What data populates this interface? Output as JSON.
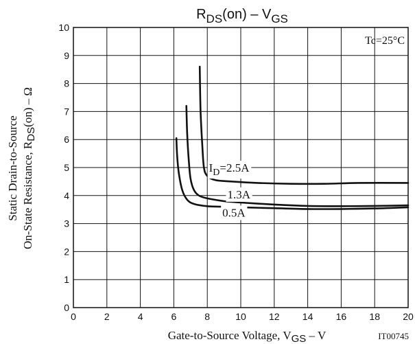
{
  "chart_data": {
    "type": "line",
    "title": {
      "main": "R",
      "sub1": "DS",
      "mid": "(on)  –  V",
      "sub2": "GS"
    },
    "xlabel": {
      "main": "Gate-to-Source Voltage, V",
      "sub": "GS",
      "tail": "  –  V"
    },
    "ylabel": {
      "line1": "Static Drain-to-Source",
      "line2_main": "On-State Resistance, R",
      "line2_sub": "DS",
      "line2_tail": "(on)  –  Ω"
    },
    "condition": "Tc=25°C",
    "code": "IT00745",
    "xlim": [
      0,
      20
    ],
    "ylim": [
      0,
      10
    ],
    "xticks": [
      "0",
      "2",
      "4",
      "6",
      "8",
      "10",
      "12",
      "14",
      "16",
      "18",
      "20"
    ],
    "yticks": [
      "0",
      "1",
      "2",
      "3",
      "4",
      "5",
      "6",
      "7",
      "8",
      "9",
      "10"
    ],
    "grid": true,
    "series": [
      {
        "label": {
          "main": "I",
          "sub": "D",
          "tail": "=2.5A"
        },
        "x": [
          7.55,
          7.6,
          7.7,
          7.8,
          8.0,
          8.5,
          9.5,
          11,
          13,
          15,
          17,
          20
        ],
        "y": [
          8.6,
          7.0,
          5.8,
          5.0,
          4.7,
          4.55,
          4.5,
          4.45,
          4.42,
          4.42,
          4.45,
          4.45
        ]
      },
      {
        "label": {
          "main": "1.3A",
          "sub": "",
          "tail": ""
        },
        "x": [
          6.75,
          6.8,
          6.9,
          7.0,
          7.2,
          7.5,
          8.0,
          9.0,
          10,
          12,
          14,
          16,
          18,
          20
        ],
        "y": [
          7.2,
          6.2,
          5.2,
          4.6,
          4.2,
          4.0,
          3.9,
          3.8,
          3.75,
          3.68,
          3.63,
          3.62,
          3.63,
          3.65
        ]
      },
      {
        "label": {
          "main": "0.5A",
          "sub": "",
          "tail": ""
        },
        "x": [
          6.15,
          6.2,
          6.3,
          6.5,
          6.8,
          7.2,
          8.0,
          9.0,
          10,
          12,
          14,
          16,
          18,
          20
        ],
        "y": [
          6.05,
          5.4,
          4.8,
          4.2,
          3.85,
          3.7,
          3.62,
          3.6,
          3.58,
          3.55,
          3.52,
          3.52,
          3.54,
          3.58
        ]
      }
    ]
  }
}
